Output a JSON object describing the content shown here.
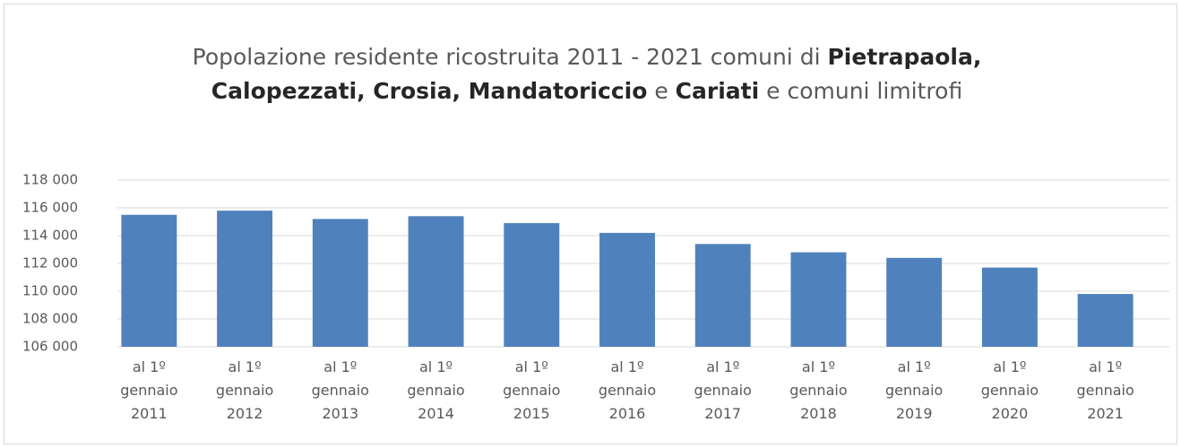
{
  "chart_data": {
    "type": "bar",
    "title": [
      {
        "text": "Popolazione residente ricostruita 2011 - 2021  comuni di ",
        "bold": false
      },
      {
        "text": "Pietrapaola, Calopezzati, Crosia, Mandatoriccio",
        "bold": true
      },
      {
        "text": " e ",
        "bold": false
      },
      {
        "text": "Cariati",
        "bold": true
      },
      {
        "text": " e comuni limitrofi",
        "bold": false
      }
    ],
    "categories": [
      "al 1º gennaio 2011",
      "al 1º gennaio 2012",
      "al 1º gennaio 2013",
      "al 1º gennaio 2014",
      "al 1º gennaio 2015",
      "al 1º gennaio 2016",
      "al 1º gennaio 2017",
      "al 1º gennaio 2018",
      "al 1º gennaio 2019",
      "al 1º gennaio 2020",
      "al 1º gennaio 2021"
    ],
    "values": [
      115500,
      115800,
      115200,
      115400,
      114900,
      114200,
      113400,
      112800,
      112400,
      111700,
      109800
    ],
    "color": "#4f81bd",
    "ylim": [
      106000,
      118000
    ],
    "yticks": [
      {
        "value": 106000,
        "label": "106 000"
      },
      {
        "value": 108000,
        "label": "108 000"
      },
      {
        "value": 110000,
        "label": "110 000"
      },
      {
        "value": 112000,
        "label": "112 000"
      },
      {
        "value": 114000,
        "label": "114 000"
      },
      {
        "value": 116000,
        "label": "116 000"
      },
      {
        "value": 118000,
        "label": "118 000"
      }
    ],
    "grid": true
  }
}
